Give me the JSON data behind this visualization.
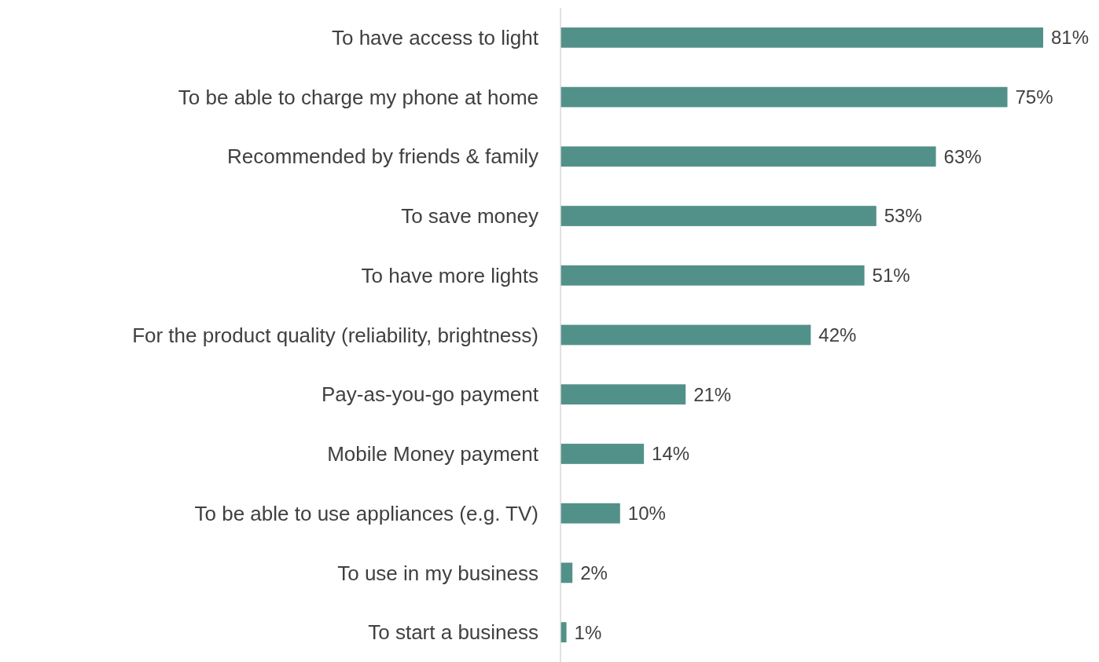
{
  "chart_data": {
    "type": "bar",
    "orientation": "horizontal",
    "categories": [
      "To have access to light",
      "To be able to charge my phone at home",
      "Recommended by friends & family",
      "To save money",
      "To have more lights",
      "For the product quality (reliability, brightness)",
      "Pay-as-you-go payment",
      "Mobile Money payment",
      "To be able to use appliances (e.g. TV)",
      "To use in my business",
      "To start a business"
    ],
    "values": [
      81,
      75,
      63,
      53,
      51,
      42,
      21,
      14,
      10,
      2,
      1
    ],
    "value_labels": [
      "81%",
      "75%",
      "63%",
      "53%",
      "51%",
      "42%",
      "21%",
      "14%",
      "10%",
      "2%",
      "1%"
    ],
    "color": "#52918a"
  }
}
